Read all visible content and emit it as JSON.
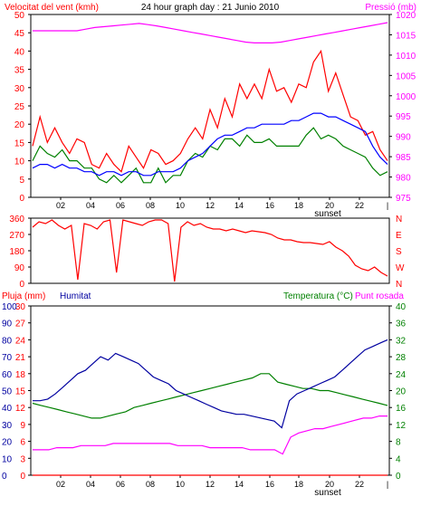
{
  "chart_data": [
    {
      "type": "line",
      "title": "24 hour graph day : 21 Junio 2010",
      "ylabel_left": "Velocitat del vent (kmh)",
      "ylabel_right": "Pressió (mb)",
      "x_ticks": [
        "02",
        "04",
        "06",
        "08",
        "10",
        "12",
        "14",
        "16",
        "18",
        "20",
        "22"
      ],
      "x_annotation": "sunset",
      "ylim_left": [
        0,
        50
      ],
      "y_ticks_left": [
        "0",
        "5",
        "10",
        "15",
        "20",
        "25",
        "30",
        "35",
        "40",
        "45",
        "50"
      ],
      "ylim_right": [
        975,
        1020
      ],
      "y_ticks_right": [
        "975",
        "980",
        "985",
        "990",
        "995",
        "1000",
        "1005",
        "1010",
        "1015",
        "1020"
      ],
      "series": [
        {
          "color": "#ff0000",
          "values": [
            14,
            22,
            15,
            19,
            15,
            12,
            16,
            15,
            9,
            8,
            12,
            9,
            7,
            14,
            11,
            8,
            13,
            12,
            9,
            10,
            12,
            16,
            19,
            16,
            24,
            19,
            27,
            22,
            31,
            27,
            31,
            27,
            35,
            29,
            30,
            26,
            31,
            30,
            37,
            40,
            29,
            34,
            28,
            22,
            21,
            17,
            18,
            13,
            10
          ]
        },
        {
          "color": "#0000ff",
          "values": [
            8,
            9,
            9,
            8,
            9,
            8,
            8,
            7,
            7,
            6,
            7,
            7,
            6,
            7,
            7,
            6,
            6,
            7,
            7,
            7,
            8,
            10,
            11,
            12,
            14,
            16,
            17,
            17,
            18,
            19,
            19,
            20,
            20,
            20,
            20,
            21,
            21,
            22,
            23,
            23,
            22,
            22,
            21,
            20,
            19,
            18,
            14,
            11,
            9
          ]
        },
        {
          "color": "#008000",
          "values": [
            10,
            14,
            12,
            11,
            13,
            10,
            10,
            8,
            8,
            5,
            4,
            6,
            4,
            6,
            8,
            4,
            4,
            8,
            4,
            6,
            6,
            10,
            12,
            11,
            14,
            13,
            16,
            16,
            14,
            17,
            15,
            15,
            16,
            14,
            14,
            14,
            14,
            17,
            19,
            16,
            17,
            16,
            14,
            13,
            12,
            11,
            8,
            6,
            7
          ]
        },
        {
          "color": "#ff00ff",
          "values": [
            1016,
            1016,
            1016,
            1016,
            1016,
            1016,
            1016.4,
            1016.8,
            1017,
            1017.2,
            1017.4,
            1017.6,
            1017.8,
            1017.5,
            1017.2,
            1016.8,
            1016.4,
            1016,
            1015.6,
            1015.2,
            1014.8,
            1014.4,
            1014,
            1013.6,
            1013.2,
            1013,
            1013,
            1013,
            1013.2,
            1013.6,
            1014,
            1014.4,
            1014.8,
            1015.2,
            1015.6,
            1016,
            1016.4,
            1016.8,
            1017.2,
            1017.6,
            1018
          ]
        }
      ]
    },
    {
      "type": "line",
      "ylim": [
        0,
        360
      ],
      "y_ticks_left": [
        "0",
        "90",
        "180",
        "270",
        "360"
      ],
      "y_ticks_right": [
        "N",
        "W",
        "S",
        "E",
        "N"
      ],
      "series": [
        {
          "color": "#ff0000",
          "values": [
            310,
            340,
            330,
            350,
            320,
            300,
            320,
            20,
            330,
            320,
            300,
            340,
            350,
            60,
            350,
            340,
            330,
            320,
            340,
            350,
            350,
            330,
            10,
            310,
            340,
            320,
            330,
            310,
            300,
            300,
            290,
            300,
            290,
            280,
            290,
            285,
            280,
            270,
            250,
            240,
            240,
            230,
            225,
            225,
            220,
            215,
            230,
            200,
            180,
            150,
            100,
            80,
            70,
            90,
            60,
            40
          ]
        }
      ]
    },
    {
      "type": "line",
      "ylabel_left_1": "Pluja (mm)",
      "ylabel_left_2": "Humitat",
      "ylabel_right_1": "Temperatura (°C)",
      "ylabel_right_2": "Punt rosada",
      "x_ticks": [
        "02",
        "04",
        "06",
        "08",
        "10",
        "12",
        "14",
        "16",
        "18",
        "20",
        "22"
      ],
      "x_annotation": "sunset",
      "y_ticks_humidity": [
        "0",
        "10",
        "20",
        "30",
        "40",
        "50",
        "60",
        "70",
        "80",
        "90",
        "100"
      ],
      "y_ticks_rain": [
        "0",
        "3",
        "6",
        "9",
        "12",
        "15",
        "18",
        "21",
        "24",
        "27",
        "30"
      ],
      "y_ticks_temp": [
        "0",
        "4",
        "8",
        "12",
        "16",
        "20",
        "24",
        "28",
        "32",
        "36",
        "40"
      ],
      "humidity_lim": [
        0,
        100
      ],
      "temp_lim": [
        0,
        40
      ],
      "series": [
        {
          "name": "Humitat",
          "color": "#0000a0",
          "axis": "humidity",
          "values": [
            44,
            44,
            45,
            48,
            52,
            56,
            60,
            62,
            66,
            70,
            68,
            72,
            70,
            68,
            66,
            62,
            58,
            56,
            54,
            50,
            48,
            46,
            44,
            42,
            40,
            38,
            37,
            36,
            36,
            35,
            34,
            33,
            32,
            28,
            44,
            48,
            50,
            52,
            54,
            56,
            58,
            62,
            66,
            70,
            74,
            76,
            78,
            80
          ]
        },
        {
          "name": "Temperatura",
          "color": "#008000",
          "axis": "temp",
          "values": [
            17,
            16.5,
            16,
            15.5,
            15,
            14.5,
            14,
            13.5,
            13.5,
            14,
            14.5,
            15,
            16,
            16.5,
            17,
            17.5,
            18,
            18.5,
            19,
            19.5,
            20,
            20.5,
            21,
            21.5,
            22,
            22.5,
            23,
            24,
            24,
            22,
            21.5,
            21,
            20.5,
            20.5,
            20,
            20,
            19.5,
            19,
            18.5,
            18,
            17.5,
            17,
            16.5
          ]
        },
        {
          "name": "Punt rosada",
          "color": "#ff00ff",
          "axis": "temp",
          "values": [
            6,
            6,
            6,
            6.5,
            6.5,
            6.5,
            7,
            7,
            7,
            7,
            7.5,
            7.5,
            7.5,
            7.5,
            7.5,
            7.5,
            7.5,
            7.5,
            7,
            7,
            7,
            7,
            6.5,
            6.5,
            6.5,
            6.5,
            6.5,
            6,
            6,
            6,
            6,
            5,
            9,
            10,
            10.5,
            11,
            11,
            11.5,
            12,
            12.5,
            13,
            13.5,
            13.5,
            14,
            14
          ]
        },
        {
          "name": "Pluja",
          "color": "#ff0000",
          "axis": "rain",
          "values": [
            0,
            0,
            0,
            0,
            0,
            0,
            0,
            0,
            0,
            0,
            0,
            0
          ]
        }
      ]
    }
  ]
}
